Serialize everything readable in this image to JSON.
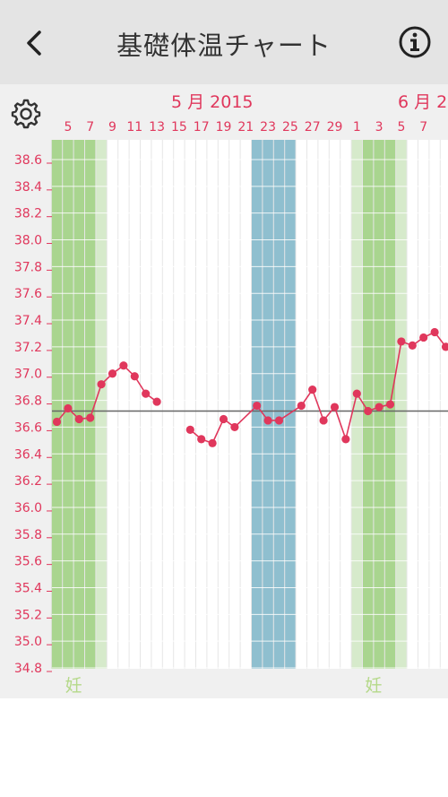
{
  "nav": {
    "title": "基礎体温チャート",
    "back_icon": "chevron-left-icon",
    "info_icon": "info-circle-icon"
  },
  "settings_icon": "gear-icon",
  "months": [
    {
      "label": "5 月 2015"
    },
    {
      "label": "6 月 2"
    }
  ],
  "colors": {
    "accent": "#e0375c",
    "fertile_light": "#d6eacb",
    "fertile_dark": "#a9d58f",
    "period": "#8fbfcf",
    "grid": "#ffffff",
    "coverline": "#666666",
    "fertile_label": "#b5d98a"
  },
  "chart_data": {
    "type": "line",
    "title": "",
    "xlabel": "",
    "ylabel": "",
    "ylim": [
      34.8,
      38.6
    ],
    "y_ticks": [
      "38.6",
      "38.4",
      "38.2",
      "38.0",
      "37.8",
      "37.6",
      "37.4",
      "37.2",
      "37.0",
      "36.8",
      "36.6",
      "36.4",
      "36.2",
      "36.0",
      "35.8",
      "35.6",
      "35.4",
      "35.2",
      "35.0",
      "34.8"
    ],
    "x_ticks": [
      "5",
      "7",
      "9",
      "11",
      "13",
      "15",
      "17",
      "19",
      "21",
      "23",
      "25",
      "27",
      "29",
      "1",
      "3",
      "5",
      "7"
    ],
    "cover_line": 36.72,
    "x_axis": "day number counted from 3 May 2015",
    "series": [
      {
        "name": "",
        "segments": [
          [
            [
              3,
              36.64
            ],
            [
              4,
              36.74
            ],
            [
              5,
              36.66
            ],
            [
              6,
              36.67
            ],
            [
              7,
              36.92
            ],
            [
              8,
              37.0
            ],
            [
              9,
              37.06
            ],
            [
              10,
              36.98
            ],
            [
              11,
              36.85
            ],
            [
              12,
              36.79
            ]
          ],
          [
            [
              15,
              36.58
            ],
            [
              16,
              36.51
            ],
            [
              17,
              36.48
            ],
            [
              18,
              36.66
            ],
            [
              19,
              36.6
            ],
            [
              21,
              36.76
            ],
            [
              22,
              36.65
            ],
            [
              23,
              36.65
            ],
            [
              25,
              36.76
            ],
            [
              26,
              36.88
            ],
            [
              27,
              36.65
            ],
            [
              28,
              36.75
            ],
            [
              29,
              36.51
            ],
            [
              30,
              36.85
            ],
            [
              31,
              36.72
            ],
            [
              32,
              36.75
            ],
            [
              33,
              36.77
            ],
            [
              34,
              37.24
            ],
            [
              35,
              37.21
            ],
            [
              36,
              37.27
            ],
            [
              37,
              37.31
            ],
            [
              38,
              37.2
            ]
          ]
        ]
      }
    ],
    "fertile_windows": [
      {
        "start": 3,
        "end": 7,
        "peak_start": 3,
        "peak_end": 6,
        "label": "妊"
      },
      {
        "start": 30,
        "end": 34,
        "peak_start": 31,
        "peak_end": 33,
        "label": "妊"
      }
    ],
    "period_days": {
      "start": 21,
      "end": 24
    }
  }
}
